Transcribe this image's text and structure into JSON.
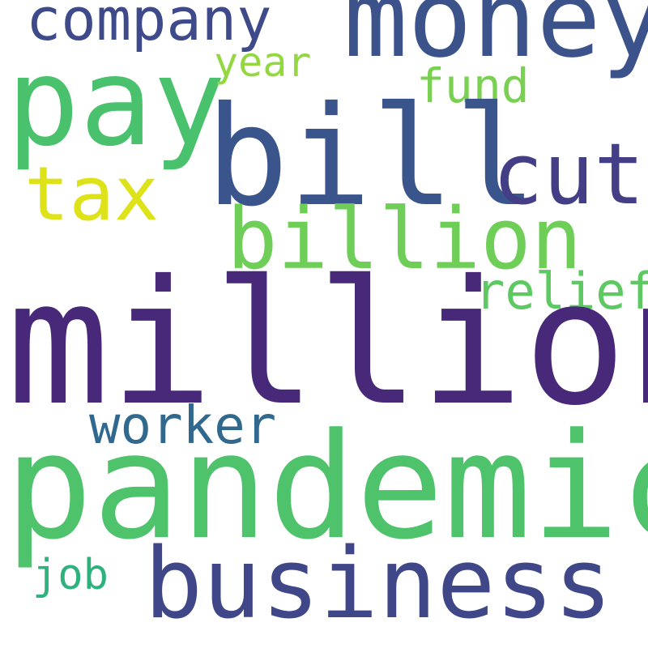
{
  "background_color": "#ffffff",
  "words": {
    "company": "company",
    "money": "money",
    "pay": "pay",
    "year": "year",
    "fund": "fund",
    "bill": "bill",
    "tax": "tax",
    "cut": "cut",
    "billion": "billion",
    "relief": "relief",
    "million": "million",
    "worker": "worker",
    "pandemic": "pandemic",
    "job": "job",
    "business": "business"
  },
  "colors": {
    "company": "#3e4a89",
    "money": "#3b528b",
    "pay": "#4ac16d",
    "year": "#93d741",
    "fund": "#7ad151",
    "bill": "#3a548c",
    "tax": "#dde318",
    "cut": "#433e85",
    "billion": "#6ece58",
    "relief": "#5ec962",
    "million": "#482878",
    "worker": "#31688e",
    "pandemic": "#4ec36b",
    "job": "#2db27d",
    "business": "#3f4788"
  }
}
